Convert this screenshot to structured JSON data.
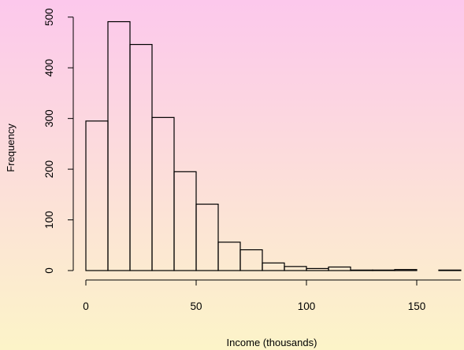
{
  "chart_data": {
    "type": "bar",
    "xlabel": "Income (thousands)",
    "ylabel": "Frequency",
    "bin_width": 10,
    "bins": [
      {
        "start": 0,
        "end": 10,
        "count": 295
      },
      {
        "start": 10,
        "end": 20,
        "count": 491
      },
      {
        "start": 20,
        "end": 30,
        "count": 446
      },
      {
        "start": 30,
        "end": 40,
        "count": 302
      },
      {
        "start": 40,
        "end": 50,
        "count": 195
      },
      {
        "start": 50,
        "end": 60,
        "count": 131
      },
      {
        "start": 60,
        "end": 70,
        "count": 56
      },
      {
        "start": 70,
        "end": 80,
        "count": 41
      },
      {
        "start": 80,
        "end": 90,
        "count": 15
      },
      {
        "start": 90,
        "end": 100,
        "count": 8
      },
      {
        "start": 100,
        "end": 110,
        "count": 4
      },
      {
        "start": 110,
        "end": 120,
        "count": 7
      },
      {
        "start": 120,
        "end": 130,
        "count": 1
      },
      {
        "start": 130,
        "end": 140,
        "count": 1
      },
      {
        "start": 140,
        "end": 150,
        "count": 2
      },
      {
        "start": 150,
        "end": 160,
        "count": 0
      },
      {
        "start": 160,
        "end": 170,
        "count": 1
      }
    ],
    "xlim": [
      0,
      170
    ],
    "ylim": [
      0,
      500
    ],
    "xticks": [
      0,
      50,
      100,
      150
    ],
    "yticks": [
      0,
      100,
      200,
      300,
      400,
      500
    ],
    "grid": false,
    "background_gradient": [
      "#fcc8ec",
      "#fcf4c8"
    ]
  }
}
